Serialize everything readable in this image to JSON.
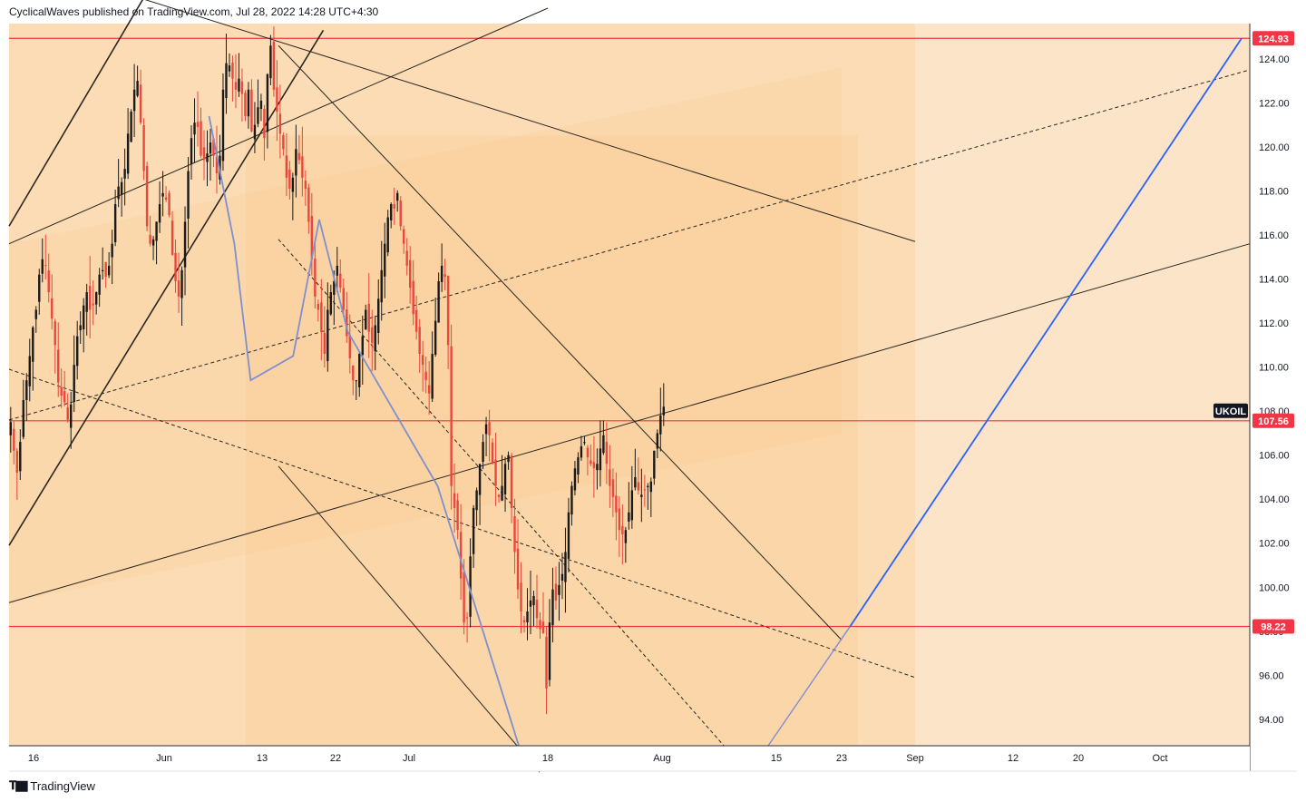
{
  "header": {
    "published_line": "CyclicalWaves published on TradingView.com, Jul 28, 2022 14:28 UTC+4:30"
  },
  "footer": {
    "logo_icon": "tradingview-logo-icon",
    "brand": "TradingView"
  },
  "colors": {
    "background": "#fbe4c8",
    "zone_light": "#fae0bf",
    "zone_mid": "#fcd9ad",
    "zone_dark": "#fbd3a2",
    "bull_candle": "#1a1a1a",
    "bear_candle": "#e8473c",
    "horizontal_level": "#f23645",
    "projection_line": "#2962ff",
    "wave_line": "#7f8fd0",
    "channel_line": "#2b2620",
    "axis_line": "#2a2e39",
    "label_bg_dark": "#131722"
  },
  "chart_data": {
    "type": "candlestick",
    "symbol": "UKOIL",
    "currency": "USD",
    "y_axis_label": "USD",
    "ylim": [
      92.8,
      125.6
    ],
    "y_ticks": [
      94,
      96,
      98,
      100,
      102,
      104,
      106,
      108,
      110,
      112,
      114,
      116,
      118,
      120,
      122,
      124
    ],
    "y_tick_labels": [
      "94.00",
      "96.00",
      "98.00",
      "100.00",
      "102.00",
      "104.00",
      "106.00",
      "108.00",
      "110.00",
      "112.00",
      "114.00",
      "116.00",
      "118.00",
      "120.00",
      "122.00",
      "124.00"
    ],
    "x_tick_labels": [
      "16",
      "Jun",
      "13",
      "22",
      "Jul",
      "18",
      "Aug",
      "15",
      "23",
      "Sep",
      "12",
      "20",
      "Oct"
    ],
    "x_tick_days": [
      136,
      152,
      164,
      173,
      182,
      199,
      213,
      227,
      235,
      244,
      256,
      264,
      274
    ],
    "xlim_days": [
      133,
      285
    ],
    "last_price_label": "UKOIL",
    "levels": [
      {
        "value": 124.93,
        "label": "124.93"
      },
      {
        "value": 107.56,
        "label": "107.56"
      },
      {
        "value": 98.22,
        "label": "98.22"
      }
    ],
    "candles_close": [
      107.5,
      106.2,
      105.2,
      106.6,
      108.5,
      109.4,
      110.5,
      111.8,
      112.6,
      114.2,
      114.9,
      114.6,
      113.4,
      112.2,
      111.0,
      109.3,
      108.7,
      108.4,
      107.6,
      108.3,
      110.1,
      111.4,
      111.9,
      112.8,
      113.4,
      112.6,
      112.8,
      113.4,
      114.2,
      114.4,
      114.1,
      114.6,
      115.6,
      117.4,
      118.2,
      118.4,
      119.0,
      120.6,
      121.6,
      122.6,
      123.0,
      121.1,
      118.9,
      116.4,
      115.6,
      115.8,
      116.6,
      117.4,
      117.9,
      117.6,
      116.9,
      115.1,
      113.9,
      113.2,
      114.4,
      116.6,
      118.9,
      120.4,
      121.1,
      120.9,
      119.6,
      119.4,
      119.7,
      120.2,
      119.6,
      118.8,
      119.6,
      122.6,
      123.8,
      123.7,
      123.1,
      122.6,
      123.1,
      122.4,
      121.4,
      122.6,
      120.7,
      121.0,
      121.8,
      122.1,
      120.4,
      123.3,
      124.6,
      122.6,
      121.6,
      120.6,
      119.9,
      118.6,
      118.1,
      118.6,
      119.9,
      119.4,
      118.6,
      118.1,
      116.6,
      114.9,
      113.2,
      112.6,
      111.6,
      110.6,
      112.6,
      113.4,
      113.9,
      114.6,
      113.6,
      112.6,
      111.4,
      110.4,
      109.4,
      109.4,
      110.6,
      111.4,
      112.6,
      111.6,
      111.1,
      111.9,
      113.1,
      114.4,
      115.6,
      116.8,
      117.4,
      117.2,
      117.9,
      116.4,
      115.6,
      114.6,
      113.6,
      112.4,
      111.6,
      110.6,
      110.1,
      109.4,
      108.8,
      110.6,
      112.1,
      113.9,
      114.6,
      114.1,
      111.0,
      104.6,
      103.6,
      102.6,
      100.4,
      98.4,
      98.6,
      101.4,
      103.6,
      104.4,
      105.6,
      106.6,
      107.4,
      106.9,
      105.6,
      104.6,
      104.1,
      104.6,
      105.6,
      106.0,
      103.6,
      101.6,
      99.9,
      98.9,
      98.4,
      98.9,
      99.4,
      99.6,
      98.6,
      98.1,
      97.9,
      95.4,
      98.4,
      99.9,
      99.4,
      100.1,
      100.6,
      101.6,
      103.4,
      104.6,
      105.4,
      105.9,
      106.4,
      106.6,
      105.9,
      105.6,
      105.4,
      105.6,
      106.3,
      106.9,
      105.6,
      104.6,
      104.1,
      103.4,
      102.6,
      102.4,
      102.6,
      103.4,
      104.4,
      105.0,
      104.4,
      104.2,
      104.4,
      104.6,
      104.8,
      106.2,
      107.0,
      107.8,
      108.2
    ]
  }
}
